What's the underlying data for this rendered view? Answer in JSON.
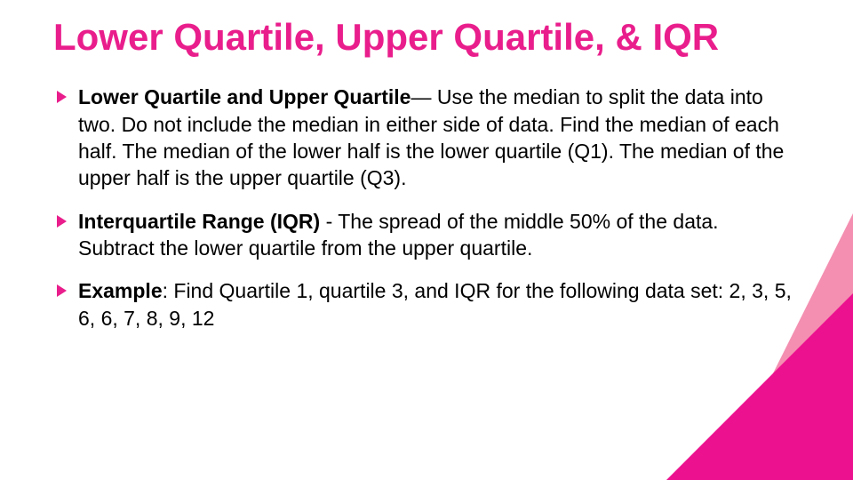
{
  "slide": {
    "title": "Lower Quartile, Upper Quartile, & IQR",
    "bullets": [
      {
        "lead": "Lower Quartile and Upper Quartile",
        "rest": "— Use the median to split the data into two. Do not include the median in either side of data. Find the median of each half. The median of the lower half is the lower quartile (Q1). The median of the upper half is the upper quartile (Q3)."
      },
      {
        "lead": "Interquartile Range (IQR)",
        "rest": "  -  The spread of the middle 50% of the data. Subtract the lower quartile from the upper quartile."
      },
      {
        "lead": "Example",
        "rest": ": Find Quartile 1, quartile 3, and IQR for the following data set: 2, 3, 5, 6, 6, 7, 8, 9, 12"
      }
    ],
    "colors": {
      "accent": "#e91e8c",
      "corner_dark": "#ec118f",
      "corner_light": "#f48fb1",
      "text": "#000000",
      "background": "#ffffff"
    },
    "typography": {
      "title_fontsize": 42,
      "title_weight": "bold",
      "body_fontsize": 23,
      "font_family": "Arial"
    }
  }
}
